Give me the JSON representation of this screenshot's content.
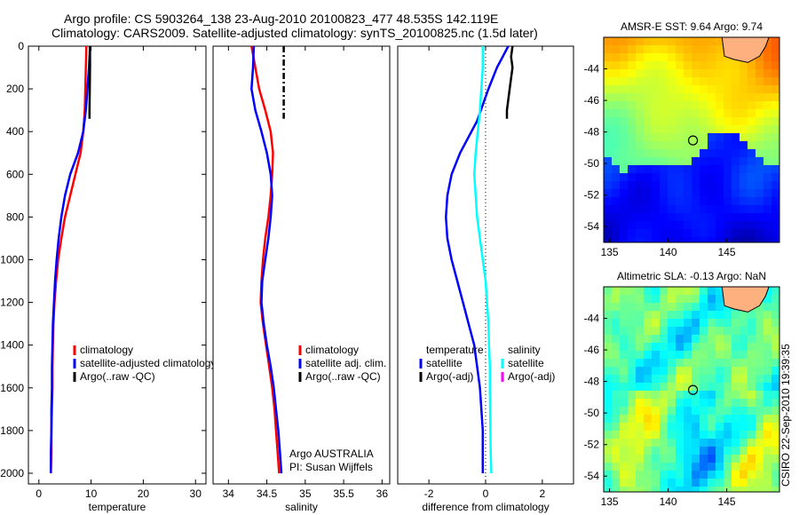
{
  "header": {
    "line1": "Argo profile: CS 5903264_138 23-Aug-2010 20100823_477 48.535S 142.119E",
    "line2": "Climatology: CARS2009. Satellite-adjusted climatology: synTS_20100825.nc (1.5d later)"
  },
  "footer": {
    "stamp": "CSIRO 22-Sep-2010 19:39:35",
    "credit_line1": "Argo AUSTRALIA",
    "credit_line2": "PI: Susan Wijffels"
  },
  "colors": {
    "climatology": "#ff0000",
    "satellite": "#0000ff",
    "argo": "#000000",
    "satellite_salinity": "#00ffff",
    "argo_salinity": "#ff00ff"
  },
  "chart_data": [
    {
      "type": "line",
      "xlabel": "temperature",
      "ylabel": "",
      "xlim": [
        -2,
        32
      ],
      "ylim": [
        2050,
        0
      ],
      "xticks": [
        0,
        10,
        20,
        30
      ],
      "yticks": [
        0,
        200,
        400,
        600,
        800,
        1000,
        1200,
        1400,
        1600,
        1800,
        2000
      ],
      "legend": [
        "climatology",
        "satellite-adjusted climatology",
        "Argo(..raw -QC)"
      ],
      "series": [
        {
          "name": "climatology",
          "color": "#ff0000",
          "points": [
            [
              9.1,
              0
            ],
            [
              9.0,
              100
            ],
            [
              8.9,
              200
            ],
            [
              8.8,
              300
            ],
            [
              8.5,
              400
            ],
            [
              8.0,
              500
            ],
            [
              7.0,
              600
            ],
            [
              6.0,
              700
            ],
            [
              5.0,
              800
            ],
            [
              4.3,
              900
            ],
            [
              3.7,
              1000
            ],
            [
              3.3,
              1100
            ],
            [
              3.0,
              1200
            ],
            [
              2.8,
              1300
            ],
            [
              2.7,
              1400
            ],
            [
              2.6,
              1500
            ],
            [
              2.6,
              1600
            ],
            [
              2.5,
              1700
            ],
            [
              2.4,
              1800
            ],
            [
              2.4,
              1900
            ],
            [
              2.3,
              2000
            ]
          ]
        },
        {
          "name": "satellite-adjusted climatology",
          "color": "#0000ff",
          "points": [
            [
              9.8,
              0
            ],
            [
              9.6,
              100
            ],
            [
              9.3,
              200
            ],
            [
              9.0,
              300
            ],
            [
              8.5,
              400
            ],
            [
              7.5,
              500
            ],
            [
              6.0,
              600
            ],
            [
              5.0,
              700
            ],
            [
              4.3,
              800
            ],
            [
              3.8,
              900
            ],
            [
              3.4,
              1000
            ],
            [
              3.1,
              1100
            ],
            [
              2.9,
              1200
            ],
            [
              2.7,
              1300
            ],
            [
              2.6,
              1400
            ],
            [
              2.5,
              1500
            ],
            [
              2.5,
              1600
            ],
            [
              2.4,
              1700
            ],
            [
              2.4,
              1800
            ],
            [
              2.3,
              1900
            ],
            [
              2.3,
              2000
            ]
          ]
        },
        {
          "name": "Argo(..raw -QC)",
          "color": "#000000",
          "points": [
            [
              9.8,
              0
            ],
            [
              9.8,
              100
            ],
            [
              9.75,
              200
            ],
            [
              9.7,
              300
            ],
            [
              9.7,
              340
            ]
          ]
        }
      ]
    },
    {
      "type": "line",
      "xlabel": "salinity",
      "ylabel": "",
      "xlim": [
        33.8,
        36.1
      ],
      "ylim": [
        2050,
        0
      ],
      "xticks": [
        34,
        34.5,
        35,
        35.5,
        36
      ],
      "xtick_labels": [
        "34",
        "34.5",
        "35",
        "35.5",
        "36"
      ],
      "legend": [
        "climatology",
        "satellite adj. clim.",
        "Argo(..raw -QC)"
      ],
      "series": [
        {
          "name": "climatology",
          "color": "#ff0000",
          "points": [
            [
              34.3,
              0
            ],
            [
              34.35,
              100
            ],
            [
              34.4,
              200
            ],
            [
              34.48,
              300
            ],
            [
              34.55,
              400
            ],
            [
              34.58,
              500
            ],
            [
              34.57,
              600
            ],
            [
              34.55,
              700
            ],
            [
              34.52,
              800
            ],
            [
              34.48,
              900
            ],
            [
              34.45,
              1000
            ],
            [
              34.43,
              1100
            ],
            [
              34.42,
              1200
            ],
            [
              34.45,
              1300
            ],
            [
              34.49,
              1400
            ],
            [
              34.53,
              1500
            ],
            [
              34.57,
              1600
            ],
            [
              34.6,
              1700
            ],
            [
              34.62,
              1800
            ],
            [
              34.64,
              1900
            ],
            [
              34.66,
              2000
            ]
          ]
        },
        {
          "name": "satellite adj. clim.",
          "color": "#0000ff",
          "points": [
            [
              34.33,
              0
            ],
            [
              34.32,
              100
            ],
            [
              34.3,
              200
            ],
            [
              34.35,
              300
            ],
            [
              34.43,
              400
            ],
            [
              34.5,
              500
            ],
            [
              34.55,
              600
            ],
            [
              34.57,
              700
            ],
            [
              34.55,
              800
            ],
            [
              34.52,
              900
            ],
            [
              34.48,
              1000
            ],
            [
              34.44,
              1100
            ],
            [
              34.43,
              1200
            ],
            [
              34.46,
              1300
            ],
            [
              34.5,
              1400
            ],
            [
              34.55,
              1500
            ],
            [
              34.59,
              1600
            ],
            [
              34.62,
              1700
            ],
            [
              34.65,
              1800
            ],
            [
              34.67,
              1900
            ],
            [
              34.69,
              2000
            ]
          ]
        },
        {
          "name": "Argo(..raw -QC)",
          "color": "#000000",
          "dash": "dashdot",
          "points": [
            [
              34.72,
              0
            ],
            [
              34.72,
              100
            ],
            [
              34.72,
              200
            ],
            [
              34.72,
              300
            ],
            [
              34.72,
              340
            ]
          ]
        }
      ]
    },
    {
      "type": "line",
      "xlabel": "difference from climatology",
      "ylabel": "",
      "xlim": [
        -3.1,
        3.1
      ],
      "ylim": [
        2050,
        0
      ],
      "xticks": [
        -2,
        0,
        2
      ],
      "legend_groups": [
        {
          "title": "temperature",
          "items": [
            "satellite",
            "Argo(-adj)"
          ]
        },
        {
          "title": "salinity",
          "items": [
            "satellite",
            "Argo(-adj)"
          ]
        }
      ],
      "series": [
        {
          "name": "temperature satellite",
          "color": "#0000ff",
          "points": [
            [
              0.8,
              0
            ],
            [
              0.6,
              50
            ],
            [
              0.4,
              100
            ],
            [
              0.1,
              200
            ],
            [
              -0.3,
              350
            ],
            [
              -0.9,
              500
            ],
            [
              -1.2,
              600
            ],
            [
              -1.35,
              700
            ],
            [
              -1.4,
              800
            ],
            [
              -1.35,
              900
            ],
            [
              -1.2,
              1000
            ],
            [
              -1.0,
              1100
            ],
            [
              -0.8,
              1200
            ],
            [
              -0.6,
              1300
            ],
            [
              -0.4,
              1400
            ],
            [
              -0.3,
              1500
            ],
            [
              -0.2,
              1600
            ],
            [
              -0.15,
              1700
            ],
            [
              -0.1,
              1800
            ],
            [
              -0.1,
              1900
            ],
            [
              -0.1,
              2000
            ]
          ]
        },
        {
          "name": "salinity satellite",
          "color": "#00ffff",
          "points": [
            [
              -0.1,
              0
            ],
            [
              -0.1,
              100
            ],
            [
              -0.15,
              200
            ],
            [
              -0.2,
              300
            ],
            [
              -0.35,
              500
            ],
            [
              -0.4,
              600
            ],
            [
              -0.35,
              700
            ],
            [
              -0.3,
              800
            ],
            [
              -0.2,
              900
            ],
            [
              -0.1,
              1000
            ],
            [
              0.0,
              1100
            ],
            [
              0.05,
              1200
            ],
            [
              0.1,
              1300
            ],
            [
              0.12,
              1400
            ],
            [
              0.15,
              1500
            ],
            [
              0.15,
              1600
            ],
            [
              0.16,
              1700
            ],
            [
              0.17,
              1800
            ],
            [
              0.18,
              1900
            ],
            [
              0.2,
              2000
            ]
          ]
        },
        {
          "name": "temperature Argo(-adj)",
          "color": "#000000",
          "points": [
            [
              0.95,
              0
            ],
            [
              0.9,
              50
            ],
            [
              0.95,
              100
            ],
            [
              0.85,
              200
            ],
            [
              0.75,
              300
            ],
            [
              0.75,
              340
            ]
          ]
        },
        {
          "name": "salinity Argo(-adj)",
          "color": "#ff00ff",
          "points": []
        }
      ]
    },
    {
      "type": "heatmap",
      "title": "AMSR-E SST: 9.64 Argo: 9.74",
      "xlim": [
        134.5,
        149.5
      ],
      "ylim": [
        -55,
        -42
      ],
      "xticks": [
        135,
        140,
        145
      ],
      "yticks": [
        -44,
        -46,
        -48,
        -50,
        -52,
        -54
      ],
      "marker": {
        "lon": 142.119,
        "lat": -48.535
      }
    },
    {
      "type": "heatmap",
      "title": "Altimetric SLA: -0.13 Argo: NaN",
      "xlim": [
        134.5,
        149.5
      ],
      "ylim": [
        -55,
        -42
      ],
      "xticks": [
        135,
        140,
        145
      ],
      "yticks": [
        -44,
        -46,
        -48,
        -50,
        -52,
        -54
      ],
      "marker": {
        "lon": 142.119,
        "lat": -48.535
      }
    }
  ]
}
